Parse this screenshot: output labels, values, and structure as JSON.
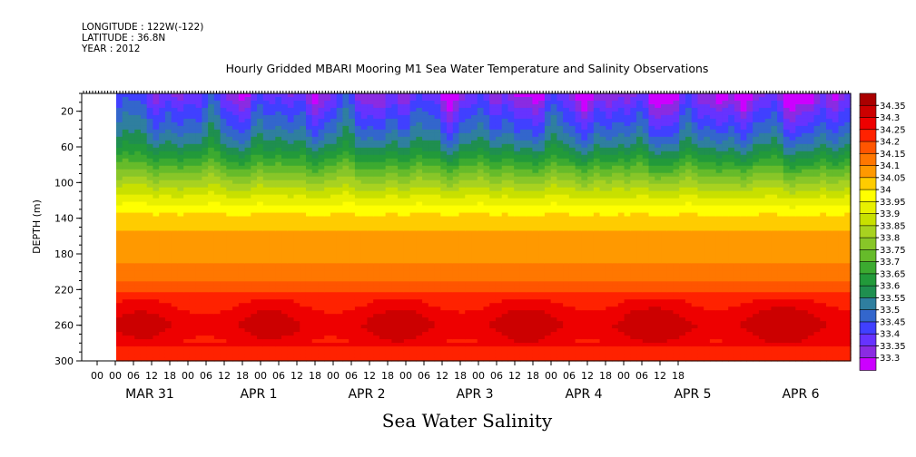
{
  "header": {
    "longitude": "LONGITUDE : 122W(-122)",
    "latitude": "LATITUDE : 36.8N",
    "year": "YEAR : 2012"
  },
  "chart_data": {
    "type": "heatmap",
    "title": "Hourly Gridded MBARI Mooring M1 Sea Water Temperature and Salinity Observations",
    "xlabel": "Sea Water Salinity",
    "ylabel": "DEPTH (m)",
    "y_ticks": [
      20,
      60,
      100,
      140,
      180,
      220,
      260,
      300
    ],
    "ylim": [
      300,
      0
    ],
    "y_reversed": true,
    "x_hour_ticks": [
      "00",
      "00",
      "06",
      "12",
      "18",
      "00",
      "06",
      "12",
      "18",
      "00",
      "06",
      "12",
      "18",
      "00",
      "06",
      "12",
      "18",
      "00",
      "06",
      "12",
      "18",
      "00",
      "06",
      "12",
      "18",
      "00",
      "06",
      "12",
      "18",
      "00",
      "06",
      "12",
      "18"
    ],
    "x_day_labels": [
      "MAR 31",
      "APR  1",
      "APR  2",
      "APR  3",
      "APR  4",
      "APR  5",
      "APR  6"
    ],
    "colorbar_levels": [
      33.3,
      33.35,
      33.4,
      33.45,
      33.5,
      33.55,
      33.6,
      33.65,
      33.7,
      33.75,
      33.8,
      33.85,
      33.9,
      33.95,
      34,
      34.05,
      34.1,
      34.15,
      34.2,
      34.25,
      34.3,
      34.35
    ],
    "colorbar_labels": [
      "34.35",
      "34.3",
      "34.25",
      "34.2",
      "34.15",
      "34.1",
      "34.05",
      "34",
      "33.95",
      "33.9",
      "33.85",
      "33.8",
      "33.75",
      "33.7",
      "33.65",
      "33.6",
      "33.55",
      "33.5",
      "33.45",
      "33.4",
      "33.35",
      "33.3"
    ],
    "colorbar_colors": [
      "#cc00ff",
      "#8a2be2",
      "#6633ff",
      "#4040ff",
      "#3366cc",
      "#2f7f9f",
      "#1f8f4f",
      "#229a3a",
      "#3caa30",
      "#66bb2a",
      "#88c628",
      "#a8d220",
      "#c8e000",
      "#e8f000",
      "#ffff00",
      "#ffcc00",
      "#ff9900",
      "#ff7700",
      "#ff5500",
      "#ff2200",
      "#ee0000",
      "#cc0000",
      "#aa0000"
    ],
    "profile_depths": [
      5,
      20,
      40,
      60,
      80,
      100,
      120,
      140,
      160,
      180,
      200,
      215,
      230,
      245,
      260,
      275,
      290,
      300
    ],
    "profile_salinity": [
      33.38,
      33.44,
      33.5,
      33.58,
      33.7,
      33.82,
      33.93,
      34.02,
      34.06,
      34.08,
      34.12,
      34.17,
      34.22,
      34.27,
      34.3,
      34.27,
      34.23,
      34.22
    ]
  }
}
